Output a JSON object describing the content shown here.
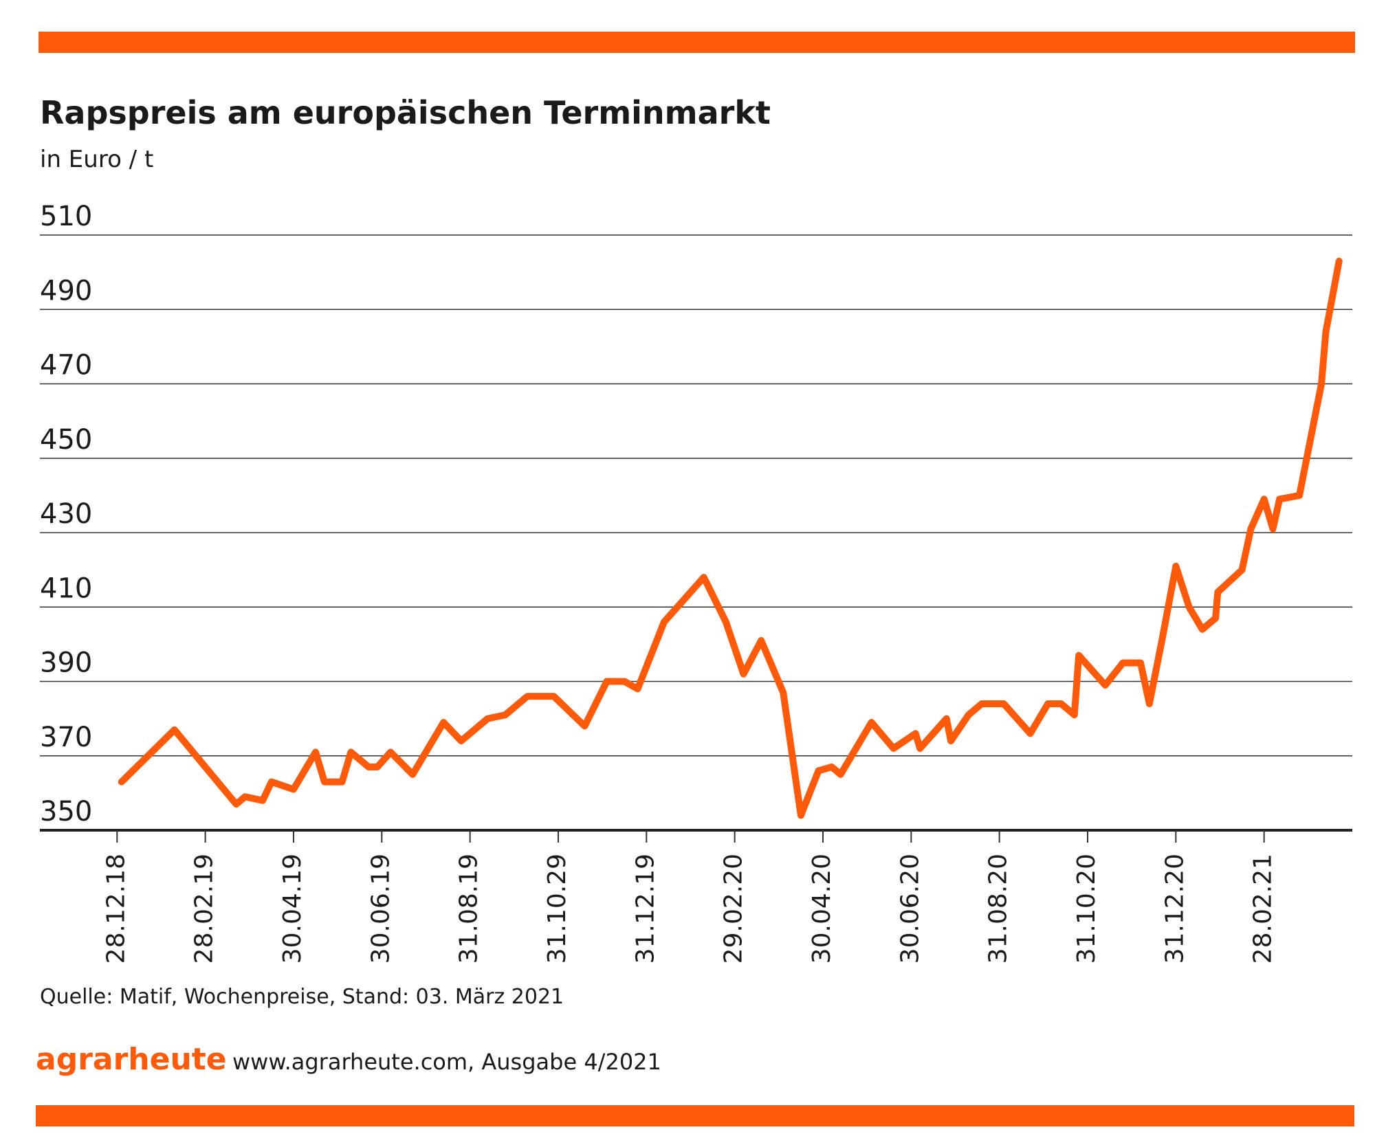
{
  "chart_data": {
    "type": "line",
    "title": "Rapspreis am europäischen Terminmarkt",
    "subtitle": "in Euro / t",
    "source": "Quelle: Matif, Wochenpreise, Stand: 03. März 2021",
    "brand": "agrarheute",
    "footer": "www.agrarheute.com,  Ausgabe 4/2021",
    "color": "#ff5a0a",
    "grid": true,
    "xlim": [
      -1.75,
      28
    ],
    "xticks": [
      {
        "value": 0,
        "label": "28.12.18"
      },
      {
        "value": 2,
        "label": "28.02.19"
      },
      {
        "value": 4,
        "label": "30.04.19"
      },
      {
        "value": 6,
        "label": "30.06.19"
      },
      {
        "value": 8,
        "label": "31.08.19"
      },
      {
        "value": 10,
        "label": "31.10.29"
      },
      {
        "value": 12,
        "label": "31.12.19"
      },
      {
        "value": 14,
        "label": "29.02.20"
      },
      {
        "value": 16,
        "label": "30.04.20"
      },
      {
        "value": 18,
        "label": "30.06.20"
      },
      {
        "value": 20,
        "label": "31.08.20"
      },
      {
        "value": 22,
        "label": "31.10.20"
      },
      {
        "value": 24,
        "label": "31.12.20"
      },
      {
        "value": 26,
        "label": "28.02.21"
      }
    ],
    "ylim": [
      350,
      510
    ],
    "yticks": [
      350,
      370,
      390,
      410,
      430,
      450,
      470,
      490,
      510
    ],
    "x": [
      0.1,
      1.3,
      2.7,
      2.9,
      3.3,
      3.5,
      4.0,
      4.5,
      4.7,
      5.1,
      5.3,
      5.7,
      5.9,
      6.2,
      6.7,
      7.4,
      7.8,
      8.4,
      8.8,
      9.3,
      9.9,
      10.6,
      11.1,
      11.5,
      11.8,
      12.4,
      13.3,
      13.8,
      14.2,
      14.6,
      15.1,
      15.5,
      15.9,
      16.2,
      16.4,
      17.1,
      17.6,
      18.1,
      18.2,
      18.8,
      18.9,
      19.3,
      19.6,
      20.1,
      20.7,
      21.1,
      21.4,
      21.7,
      21.8,
      22.4,
      22.8,
      23.2,
      23.4,
      23.7,
      24.0,
      24.3,
      24.6,
      24.9,
      24.95,
      25.5,
      25.7,
      26.0,
      26.2,
      26.35,
      26.8,
      27.1,
      27.3,
      27.4,
      27.7
    ],
    "values": [
      363,
      377,
      357,
      359,
      358,
      363,
      361,
      371,
      363,
      363,
      371,
      367,
      367,
      371,
      365,
      379,
      374,
      380,
      381,
      386,
      386,
      378,
      390,
      390,
      388,
      406,
      418,
      406,
      392,
      401,
      387,
      354,
      366,
      367,
      365,
      379,
      372,
      376,
      372,
      380,
      374,
      381,
      384,
      384,
      376,
      384,
      384,
      381,
      397,
      389,
      395,
      395,
      384,
      402,
      421,
      410,
      404,
      407,
      414,
      420,
      431,
      439,
      431,
      439,
      440,
      458,
      470,
      484,
      503
    ]
  }
}
